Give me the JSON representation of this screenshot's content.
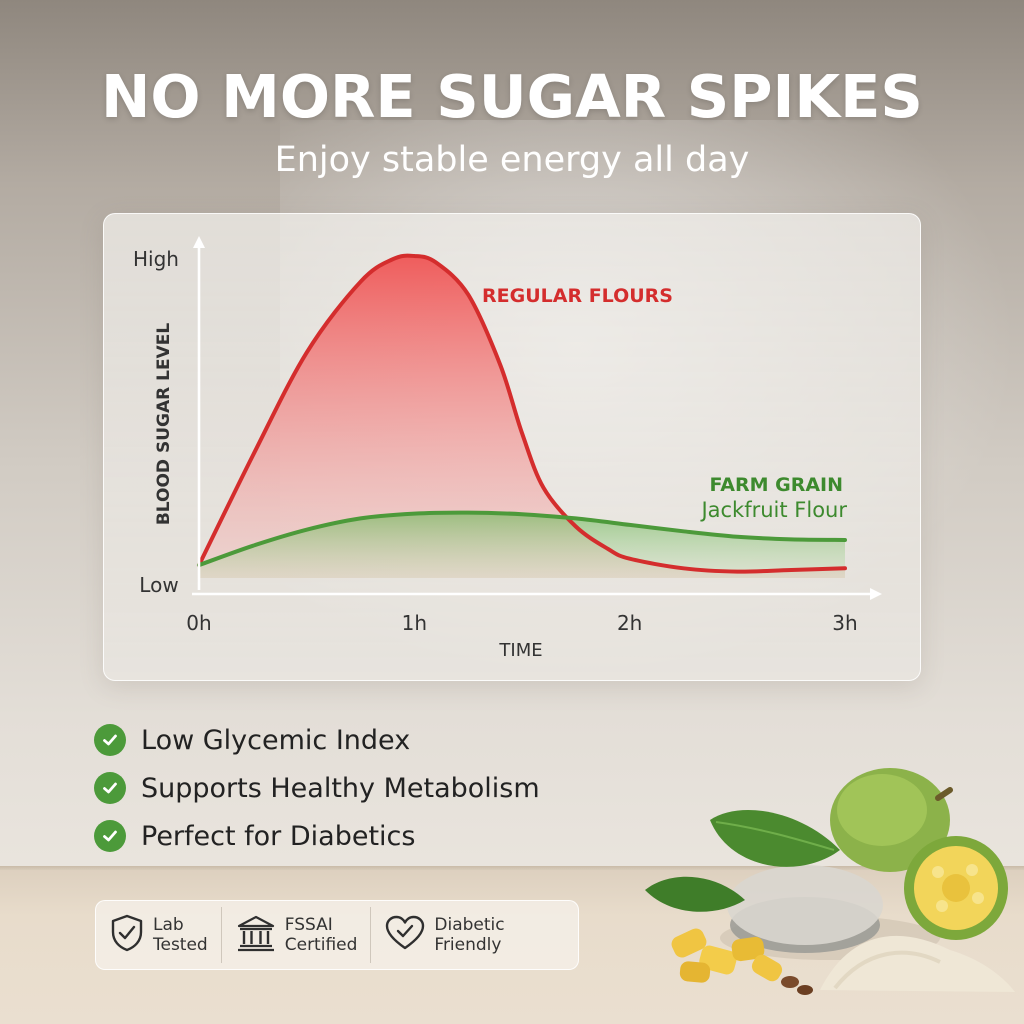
{
  "headline": "NO MORE SUGAR SPIKES",
  "subheadline": "Enjoy stable energy all day",
  "chart_data": {
    "type": "area",
    "ylabel": "BLOOD SUGAR LEVEL",
    "xlabel": "TIME",
    "y_tick_labels": [
      "Low",
      "High"
    ],
    "x_tick_labels": [
      "0h",
      "1h",
      "2h",
      "3h"
    ],
    "xlim": [
      0,
      3
    ],
    "ylim": [
      0,
      100
    ],
    "grid": false,
    "series": [
      {
        "name": "REGULAR FLOURS",
        "color": "#d42d2d",
        "x": [
          0,
          0.25,
          0.5,
          0.75,
          0.9,
          1.0,
          1.1,
          1.25,
          1.4,
          1.5,
          1.6,
          1.75,
          1.9,
          2.0,
          2.25,
          2.5,
          2.75,
          3.0
        ],
        "y": [
          4,
          38,
          70,
          92,
          99,
          100,
          98,
          88,
          66,
          45,
          28,
          16,
          9,
          6,
          3,
          2,
          2.5,
          3
        ]
      },
      {
        "name": "FARM GRAIN",
        "subtitle": "Jackfruit Flour",
        "color": "#4c9a3a",
        "x": [
          0,
          0.25,
          0.5,
          0.75,
          1.0,
          1.25,
          1.5,
          1.75,
          2.0,
          2.25,
          2.5,
          2.75,
          3.0
        ],
        "y": [
          4,
          10,
          15,
          18.5,
          20,
          20.3,
          19.8,
          18.5,
          16.5,
          14.5,
          12.8,
          12,
          11.8
        ]
      }
    ]
  },
  "benefits": [
    "Low Glycemic Index",
    "Supports Healthy Metabolism",
    "Perfect for Diabetics"
  ],
  "badges": [
    {
      "icon": "shield-check-icon",
      "line1": "Lab",
      "line2": "Tested"
    },
    {
      "icon": "government-building-icon",
      "line1": "FSSAI",
      "line2": "Certified"
    },
    {
      "icon": "heart-check-icon",
      "line1": "Diabetic",
      "line2": "Friendly"
    }
  ],
  "colors": {
    "check_green": "#4c9a3a",
    "regular_red": "#d42d2d",
    "farm_green": "#4c9a3a"
  }
}
